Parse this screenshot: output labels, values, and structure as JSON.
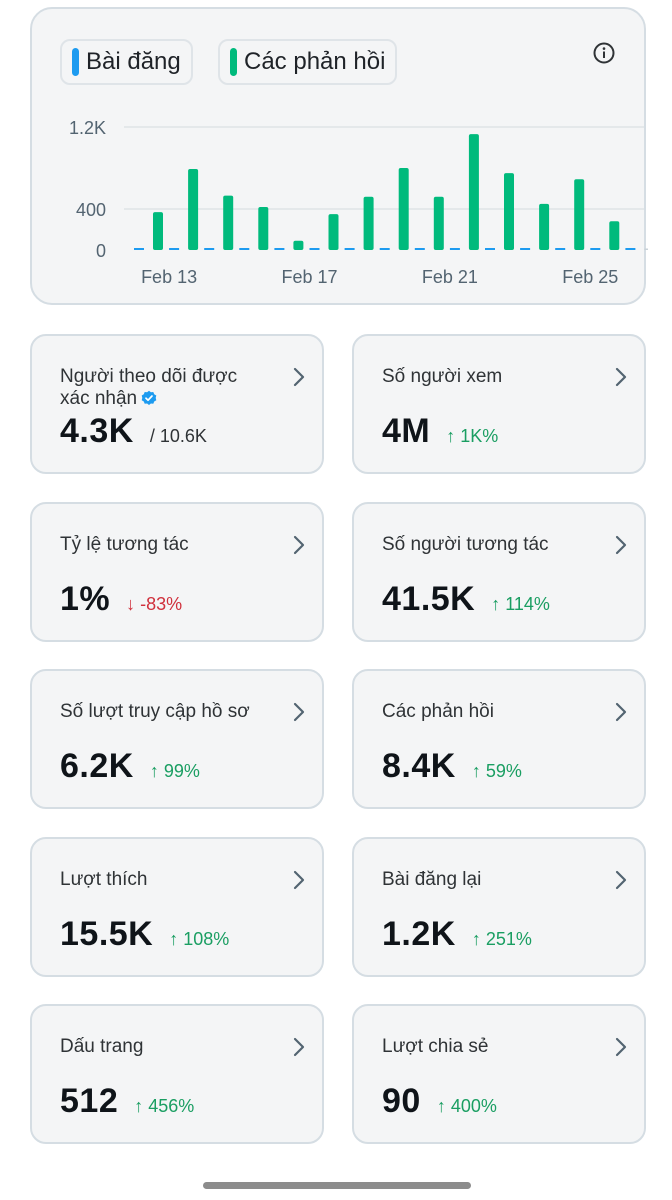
{
  "chart": {
    "legend": [
      {
        "label": "Bài đăng",
        "color": "#1d9bf0"
      },
      {
        "label": "Các phản hồi",
        "color": "#00ba7c"
      }
    ],
    "info_icon": "info-icon"
  },
  "chart_data": {
    "type": "bar",
    "categories": [
      "Feb 12",
      "Feb 13",
      "Feb 14",
      "Feb 15",
      "Feb 16",
      "Feb 17",
      "Feb 18",
      "Feb 19",
      "Feb 20",
      "Feb 21",
      "Feb 22",
      "Feb 23",
      "Feb 24",
      "Feb 25",
      "Feb 26"
    ],
    "x_tick_labels": [
      "Feb 13",
      "Feb 17",
      "Feb 21",
      "Feb 25"
    ],
    "y_tick_labels": [
      "1.2K",
      "400",
      "0"
    ],
    "ylim": [
      0,
      1200
    ],
    "series": [
      {
        "name": "Bài đăng",
        "color": "#1d9bf0",
        "values": [
          0,
          0,
          0,
          0,
          0,
          0,
          0,
          0,
          0,
          0,
          0,
          0,
          0,
          0,
          0
        ]
      },
      {
        "name": "Các phản hồi",
        "color": "#00ba7c",
        "values": [
          370,
          790,
          530,
          420,
          90,
          350,
          520,
          800,
          520,
          1130,
          750,
          450,
          690,
          280,
          0
        ]
      }
    ],
    "grid": true
  },
  "stats": [
    {
      "title": "Người theo dõi được xác nhận",
      "verified": true,
      "value": "4.3K",
      "sub": "/ 10.6K",
      "change": "",
      "direction": ""
    },
    {
      "title": "Số người xem",
      "verified": false,
      "value": "4M",
      "sub": "",
      "change": "↑ 1K%",
      "direction": "up"
    },
    {
      "title": "Tỷ lệ tương tác",
      "verified": false,
      "value": "1%",
      "sub": "",
      "change": "↓ -83%",
      "direction": "down"
    },
    {
      "title": "Số người tương tác",
      "verified": false,
      "value": "41.5K",
      "sub": "",
      "change": "↑ 114%",
      "direction": "up"
    },
    {
      "title": "Số lượt truy cập hồ sơ",
      "verified": false,
      "value": "6.2K",
      "sub": "",
      "change": "↑ 99%",
      "direction": "up"
    },
    {
      "title": "Các phản hồi",
      "verified": false,
      "value": "8.4K",
      "sub": "",
      "change": "↑ 59%",
      "direction": "up"
    },
    {
      "title": "Lượt thích",
      "verified": false,
      "value": "15.5K",
      "sub": "",
      "change": "↑ 108%",
      "direction": "up"
    },
    {
      "title": "Bài đăng lại",
      "verified": false,
      "value": "1.2K",
      "sub": "",
      "change": "↑ 251%",
      "direction": "up"
    },
    {
      "title": "Dấu trang",
      "verified": false,
      "value": "512",
      "sub": "",
      "change": "↑ 456%",
      "direction": "up"
    },
    {
      "title": "Lượt chia sẻ",
      "verified": false,
      "value": "90",
      "sub": "",
      "change": "↑ 400%",
      "direction": "up"
    }
  ]
}
